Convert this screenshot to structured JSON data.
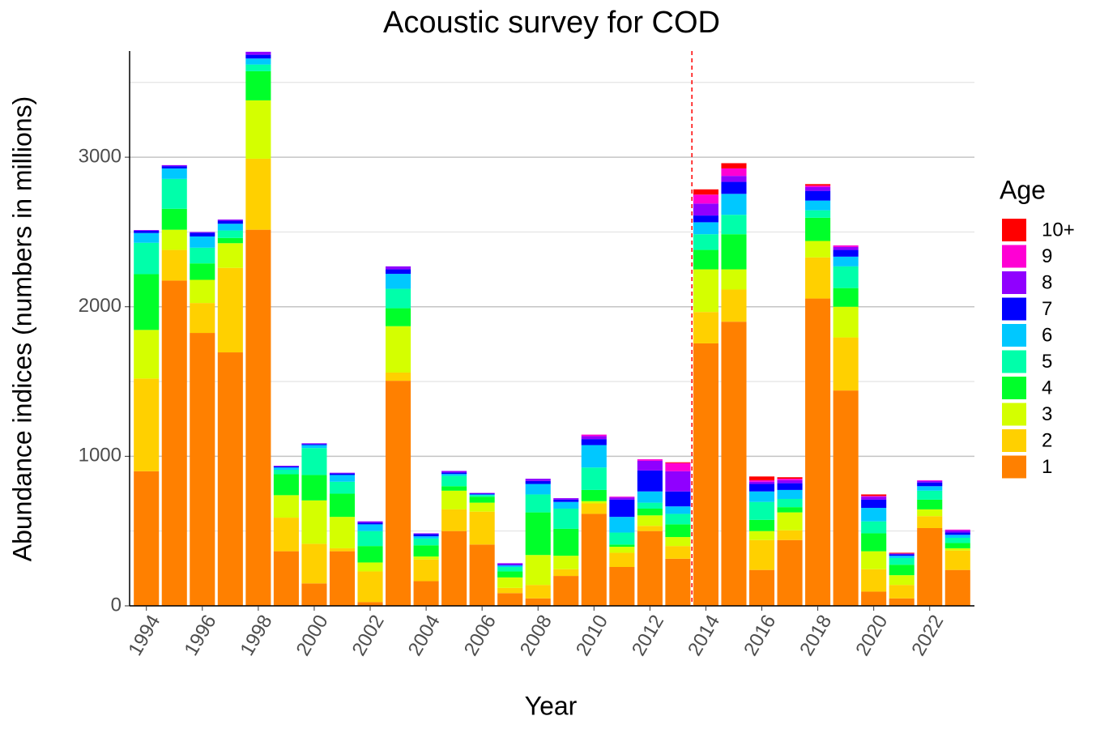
{
  "chart_data": {
    "type": "stacked_bar",
    "title": "Acoustic survey for COD",
    "xlabel": "Year",
    "ylabel": "Abundance indices (numbers in millions)",
    "x": [
      1994,
      1995,
      1996,
      1997,
      1998,
      1999,
      2000,
      2001,
      2002,
      2003,
      2004,
      2005,
      2006,
      2007,
      2008,
      2009,
      2010,
      2011,
      2012,
      2013,
      2014,
      2015,
      2016,
      2017,
      2018,
      2019,
      2020,
      2021,
      2022,
      2023
    ],
    "xlim": [
      1993.4,
      2023.6
    ],
    "xticks": [
      1994,
      1996,
      1998,
      2000,
      2002,
      2004,
      2006,
      2008,
      2010,
      2012,
      2014,
      2016,
      2018,
      2020,
      2022
    ],
    "ylim": [
      0,
      3710
    ],
    "yticks": [
      0,
      1000,
      2000,
      3000
    ],
    "minor_grid": [
      500,
      1500,
      2500,
      3500
    ],
    "grid": true,
    "legend_title": "Age",
    "legend": "right",
    "vline": {
      "x": 2013.5,
      "color": "#ff0000"
    },
    "series": [
      {
        "name": "1",
        "color": "#ff8000",
        "values": [
          900,
          2175,
          1825,
          1695,
          2515,
          365,
          150,
          365,
          25,
          1505,
          165,
          500,
          410,
          85,
          50,
          200,
          615,
          260,
          500,
          315,
          1755,
          1900,
          240,
          440,
          2055,
          1440,
          95,
          50,
          520,
          240
        ]
      },
      {
        "name": "2",
        "color": "#ffd000",
        "values": [
          620,
          205,
          200,
          565,
          475,
          225,
          265,
          20,
          205,
          55,
          145,
          145,
          220,
          35,
          90,
          45,
          70,
          95,
          35,
          85,
          210,
          215,
          200,
          65,
          275,
          355,
          150,
          90,
          80,
          130
        ]
      },
      {
        "name": "3",
        "color": "#d4ff00",
        "values": [
          325,
          135,
          155,
          165,
          390,
          150,
          290,
          210,
          60,
          310,
          20,
          125,
          60,
          70,
          200,
          90,
          15,
          40,
          70,
          60,
          285,
          135,
          60,
          120,
          110,
          205,
          120,
          65,
          45,
          15
        ]
      },
      {
        "name": "4",
        "color": "#00ff2a",
        "values": [
          373,
          140,
          110,
          35,
          195,
          140,
          170,
          155,
          110,
          120,
          75,
          30,
          40,
          40,
          285,
          180,
          75,
          15,
          45,
          85,
          130,
          235,
          75,
          35,
          155,
          125,
          120,
          70,
          65,
          35
        ]
      },
      {
        "name": "5",
        "color": "#00ffaa",
        "values": [
          210,
          200,
          105,
          50,
          45,
          30,
          180,
          80,
          100,
          130,
          45,
          70,
          10,
          30,
          120,
          135,
          150,
          80,
          40,
          70,
          105,
          130,
          120,
          55,
          50,
          145,
          80,
          45,
          60,
          35
        ]
      },
      {
        "name": "6",
        "color": "#00c8ff",
        "values": [
          65,
          70,
          75,
          45,
          40,
          15,
          20,
          45,
          45,
          100,
          15,
          12,
          5,
          10,
          70,
          45,
          150,
          105,
          75,
          50,
          80,
          140,
          70,
          60,
          65,
          65,
          90,
          15,
          30,
          20
        ]
      },
      {
        "name": "7",
        "color": "#0000ff",
        "values": [
          15,
          15,
          25,
          20,
          25,
          7,
          7,
          10,
          10,
          30,
          15,
          10,
          5,
          5,
          20,
          15,
          40,
          115,
          140,
          100,
          45,
          80,
          50,
          45,
          65,
          45,
          55,
          10,
          25,
          15
        ]
      },
      {
        "name": "8",
        "color": "#9000ff",
        "values": [
          5,
          7,
          5,
          8,
          20,
          5,
          5,
          5,
          10,
          20,
          5,
          10,
          5,
          10,
          15,
          10,
          20,
          15,
          65,
          135,
          80,
          40,
          15,
          20,
          25,
          20,
          20,
          5,
          10,
          15
        ]
      },
      {
        "name": "9",
        "color": "#ff00d4",
        "values": [
          0,
          0,
          0,
          0,
          0,
          0,
          0,
          0,
          0,
          0,
          0,
          0,
          0,
          0,
          0,
          0,
          10,
          5,
          10,
          55,
          60,
          50,
          10,
          10,
          10,
          10,
          5,
          0,
          5,
          5
        ]
      },
      {
        "name": "10+",
        "color": "#ff0000",
        "values": [
          0,
          0,
          0,
          0,
          0,
          0,
          0,
          0,
          0,
          0,
          0,
          0,
          0,
          0,
          0,
          0,
          0,
          0,
          0,
          5,
          35,
          35,
          25,
          10,
          10,
          0,
          10,
          5,
          0,
          0
        ]
      }
    ]
  }
}
